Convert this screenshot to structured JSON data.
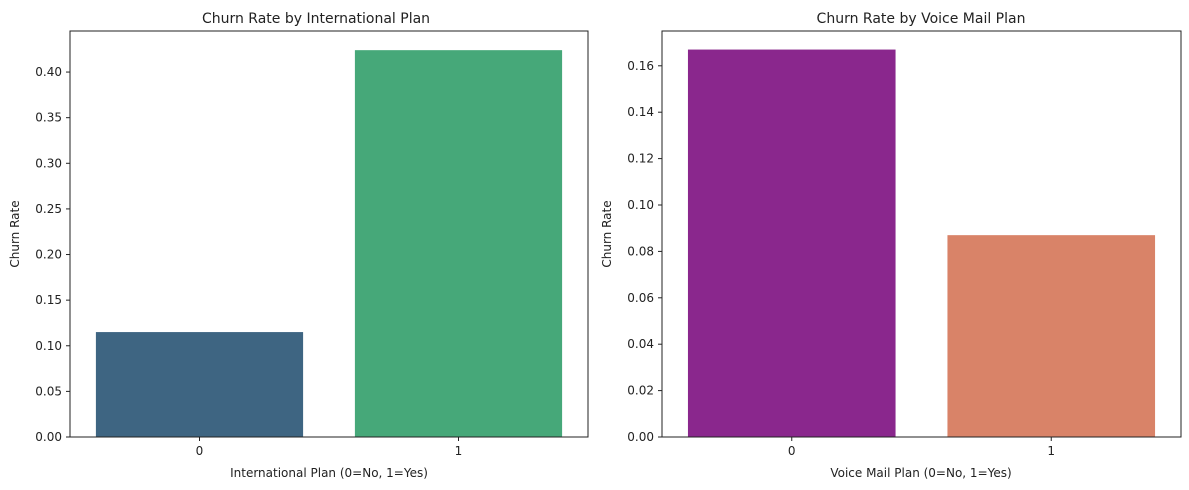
{
  "chart_data": [
    {
      "type": "bar",
      "title": "Churn Rate by International Plan",
      "xlabel": "International Plan (0=No, 1=Yes)",
      "ylabel": "Churn Rate",
      "categories": [
        "0",
        "1"
      ],
      "values": [
        0.115,
        0.424
      ],
      "colors": [
        "#3e6582",
        "#46a879"
      ],
      "ylim": [
        0,
        0.445
      ],
      "yticks": [
        0.0,
        0.05,
        0.1,
        0.15,
        0.2,
        0.25,
        0.3,
        0.35,
        0.4
      ],
      "ytick_labels": [
        "0.00",
        "0.05",
        "0.10",
        "0.15",
        "0.20",
        "0.25",
        "0.30",
        "0.35",
        "0.40"
      ],
      "grid": false
    },
    {
      "type": "bar",
      "title": "Churn Rate by Voice Mail Plan",
      "xlabel": "Voice Mail Plan (0=No, 1=Yes)",
      "ylabel": "Churn Rate",
      "categories": [
        "0",
        "1"
      ],
      "values": [
        0.167,
        0.087
      ],
      "colors": [
        "#8a278d",
        "#d98368"
      ],
      "ylim": [
        0,
        0.175
      ],
      "yticks": [
        0.0,
        0.02,
        0.04,
        0.06,
        0.08,
        0.1,
        0.12,
        0.14,
        0.16
      ],
      "ytick_labels": [
        "0.00",
        "0.02",
        "0.04",
        "0.06",
        "0.08",
        "0.10",
        "0.12",
        "0.14",
        "0.16"
      ],
      "grid": false
    }
  ]
}
